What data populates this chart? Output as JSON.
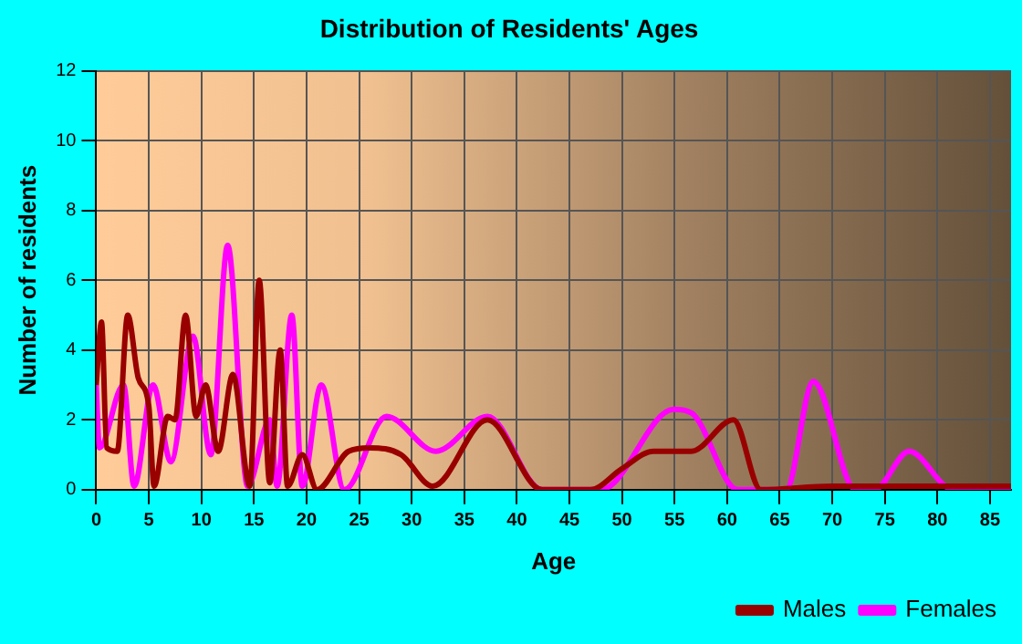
{
  "chart_data": {
    "type": "line",
    "title": "Distribution of Residents' Ages",
    "xlabel": "Age",
    "ylabel": "Number of residents",
    "xlim": [
      0,
      87
    ],
    "xticks": [
      0,
      5,
      10,
      15,
      20,
      25,
      30,
      35,
      40,
      45,
      50,
      55,
      60,
      65,
      70,
      75,
      80,
      85
    ],
    "ylim": [
      0,
      12
    ],
    "yticks": [
      0,
      2,
      4,
      6,
      8,
      10,
      12
    ],
    "grid": true,
    "legend": "bottom right",
    "marker": "none",
    "line_style": "solid",
    "series": [
      {
        "name": "Males",
        "color": "#990000",
        "x": [
          0,
          0.5,
          1,
          2,
          3,
          4,
          5,
          5.5,
          6.8,
          7.5,
          8.5,
          9.5,
          10.4,
          11.6,
          13,
          14.6,
          15.5,
          16.5,
          17.5,
          18.2,
          19.6,
          21,
          24,
          26,
          29,
          32,
          37.2,
          42.4,
          47,
          50,
          53,
          56.6,
          60.6,
          63.2,
          70,
          80,
          87
        ],
        "values": [
          3,
          4.8,
          1.2,
          1.1,
          5,
          3.2,
          2.4,
          0.1,
          2.1,
          2,
          5,
          2.1,
          3,
          1.1,
          3.3,
          0.1,
          6,
          0.2,
          4,
          0.1,
          1,
          0,
          1.1,
          1.2,
          1,
          0.1,
          2,
          0,
          0,
          0.6,
          1.1,
          1.1,
          2,
          0,
          0.1,
          0.1,
          0.1
        ]
      },
      {
        "name": "Females",
        "color": "#ff00ff",
        "x": [
          0,
          0.3,
          2.6,
          3.6,
          5.4,
          7.1,
          9.2,
          10.9,
          12.5,
          14.4,
          16.5,
          17.2,
          18.6,
          19.6,
          21.4,
          23.6,
          27.6,
          32.3,
          37.2,
          42.4,
          48,
          54.9,
          56.6,
          61,
          65.6,
          68.2,
          72.2,
          74,
          77.3,
          81.5,
          87
        ],
        "values": [
          3,
          1.2,
          3,
          0.1,
          3,
          0.8,
          4.4,
          1,
          7,
          0.1,
          2,
          0.1,
          5,
          0.1,
          3,
          0,
          2.1,
          1.1,
          2.1,
          0,
          0,
          2.3,
          2.2,
          0,
          0,
          3.1,
          0,
          0,
          1.1,
          0,
          0
        ]
      }
    ]
  }
}
